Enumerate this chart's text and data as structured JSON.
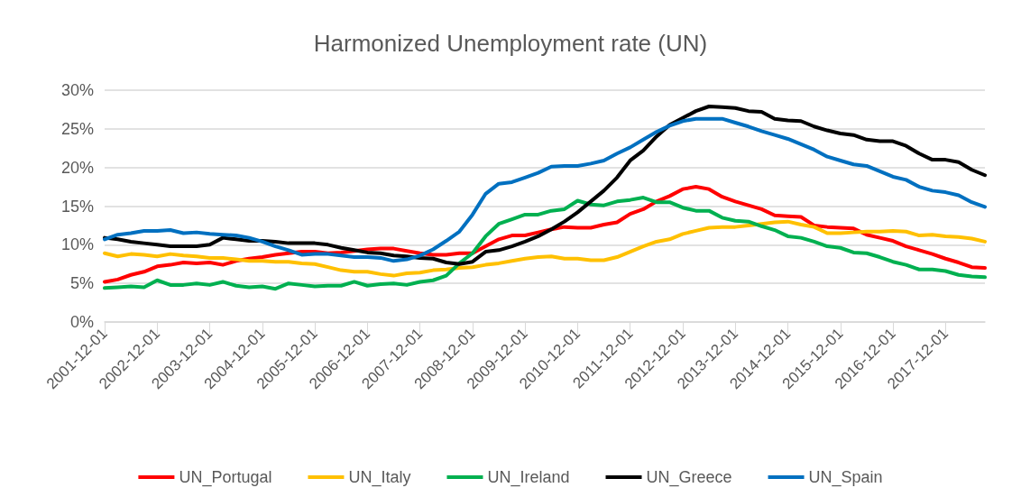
{
  "chart_data": {
    "type": "line",
    "title": "Harmonized Unemployment rate (UN)",
    "categories": [
      "2001-12-01",
      null,
      null,
      null,
      "2002-12-01",
      null,
      null,
      null,
      "2003-12-01",
      null,
      null,
      null,
      "2004-12-01",
      null,
      null,
      null,
      "2005-12-01",
      null,
      null,
      null,
      "2006-12-01",
      null,
      null,
      null,
      "2007-12-01",
      null,
      null,
      null,
      "2008-12-01",
      null,
      null,
      null,
      "2009-12-01",
      null,
      null,
      null,
      "2010-12-01",
      null,
      null,
      null,
      "2011-12-01",
      null,
      null,
      null,
      "2012-12-01",
      null,
      null,
      null,
      "2013-12-01",
      null,
      null,
      null,
      "2014-12-01",
      null,
      null,
      null,
      "2015-12-01",
      null,
      null,
      null,
      "2016-12-01",
      null,
      null,
      null,
      "2017-12-01",
      null,
      null,
      null
    ],
    "series": [
      {
        "name": "UN_Portugal",
        "color": "#ff0000",
        "values": [
          5.2,
          5.5,
          6.1,
          6.5,
          7.2,
          7.4,
          7.7,
          7.6,
          7.7,
          7.4,
          7.9,
          8.2,
          8.4,
          8.7,
          8.9,
          9.1,
          9.1,
          8.9,
          9.0,
          9.2,
          9.4,
          9.5,
          9.5,
          9.2,
          8.9,
          8.7,
          8.7,
          8.9,
          8.9,
          9.8,
          10.7,
          11.2,
          11.2,
          11.6,
          12.0,
          12.3,
          12.2,
          12.2,
          12.6,
          12.9,
          14.0,
          14.6,
          15.6,
          16.3,
          17.2,
          17.5,
          17.2,
          16.2,
          15.6,
          15.1,
          14.6,
          13.8,
          13.7,
          13.6,
          12.5,
          12.3,
          12.2,
          12.1,
          11.3,
          10.9,
          10.5,
          9.8,
          9.3,
          8.8,
          8.2,
          7.7,
          7.1,
          7.0
        ]
      },
      {
        "name": "UN_Italy",
        "color": "#ffc000",
        "values": [
          8.9,
          8.5,
          8.8,
          8.7,
          8.5,
          8.8,
          8.6,
          8.5,
          8.3,
          8.3,
          8.1,
          7.9,
          7.9,
          7.8,
          7.8,
          7.6,
          7.5,
          7.1,
          6.7,
          6.5,
          6.5,
          6.2,
          6.0,
          6.3,
          6.4,
          6.7,
          6.8,
          7.0,
          7.1,
          7.4,
          7.6,
          7.9,
          8.2,
          8.4,
          8.5,
          8.2,
          8.2,
          8.0,
          8.0,
          8.4,
          9.1,
          9.8,
          10.4,
          10.7,
          11.4,
          11.8,
          12.2,
          12.3,
          12.3,
          12.5,
          12.7,
          12.9,
          13.0,
          12.6,
          12.3,
          11.5,
          11.5,
          11.6,
          11.7,
          11.7,
          11.8,
          11.7,
          11.2,
          11.3,
          11.1,
          11.0,
          10.8,
          10.4
        ]
      },
      {
        "name": "UN_Ireland",
        "color": "#00b050",
        "values": [
          4.4,
          4.5,
          4.6,
          4.5,
          5.4,
          4.8,
          4.8,
          5.0,
          4.8,
          5.2,
          4.7,
          4.5,
          4.6,
          4.3,
          5.0,
          4.8,
          4.6,
          4.7,
          4.7,
          5.2,
          4.7,
          4.9,
          5.0,
          4.8,
          5.2,
          5.4,
          6.0,
          7.6,
          8.9,
          11.1,
          12.7,
          13.3,
          13.9,
          13.9,
          14.4,
          14.6,
          15.7,
          15.2,
          15.1,
          15.6,
          15.8,
          16.1,
          15.5,
          15.5,
          14.8,
          14.4,
          14.4,
          13.5,
          13.1,
          13.0,
          12.4,
          11.9,
          11.1,
          10.9,
          10.4,
          9.8,
          9.6,
          9.0,
          8.9,
          8.4,
          7.8,
          7.4,
          6.8,
          6.8,
          6.6,
          6.1,
          5.9,
          5.8
        ]
      },
      {
        "name": "UN_Greece",
        "color": "#000000",
        "values": [
          10.9,
          10.7,
          10.4,
          10.2,
          10.0,
          9.8,
          9.8,
          9.8,
          10.0,
          10.9,
          10.7,
          10.5,
          10.5,
          10.4,
          10.2,
          10.2,
          10.2,
          10.0,
          9.6,
          9.3,
          9.0,
          8.9,
          8.6,
          8.5,
          8.3,
          8.2,
          7.7,
          7.5,
          7.8,
          9.1,
          9.3,
          9.8,
          10.4,
          11.1,
          12.0,
          13.0,
          14.2,
          15.6,
          17.0,
          18.7,
          20.9,
          22.2,
          24.0,
          25.5,
          26.4,
          27.3,
          27.9,
          27.8,
          27.7,
          27.3,
          27.2,
          26.3,
          26.1,
          26.0,
          25.3,
          24.8,
          24.4,
          24.2,
          23.6,
          23.4,
          23.4,
          22.8,
          21.8,
          21.0,
          21.0,
          20.7,
          19.7,
          19.0
        ]
      },
      {
        "name": "UN_Spain",
        "color": "#0070c0",
        "values": [
          10.7,
          11.3,
          11.5,
          11.8,
          11.8,
          11.9,
          11.5,
          11.6,
          11.4,
          11.3,
          11.2,
          10.9,
          10.4,
          9.8,
          9.3,
          8.7,
          8.8,
          8.8,
          8.6,
          8.4,
          8.4,
          8.3,
          7.9,
          8.1,
          8.6,
          9.4,
          10.5,
          11.7,
          13.9,
          16.6,
          17.9,
          18.1,
          18.7,
          19.3,
          20.1,
          20.2,
          20.2,
          20.5,
          20.9,
          21.8,
          22.6,
          23.6,
          24.6,
          25.4,
          26.0,
          26.3,
          26.3,
          26.3,
          25.8,
          25.3,
          24.7,
          24.2,
          23.7,
          23.0,
          22.3,
          21.4,
          20.9,
          20.4,
          20.2,
          19.5,
          18.8,
          18.4,
          17.5,
          17.0,
          16.8,
          16.4,
          15.5,
          14.9
        ]
      }
    ],
    "ylim": [
      0,
      30
    ],
    "yticks": [
      {
        "value": 0,
        "label": "0%"
      },
      {
        "value": 5,
        "label": "5%"
      },
      {
        "value": 10,
        "label": "10%"
      },
      {
        "value": 15,
        "label": "15%"
      },
      {
        "value": 20,
        "label": "20%"
      },
      {
        "value": 25,
        "label": "25%"
      },
      {
        "value": 30,
        "label": "30%"
      }
    ],
    "grid": "y",
    "legend": "bottom",
    "marker": "none",
    "line_style": "solid"
  }
}
